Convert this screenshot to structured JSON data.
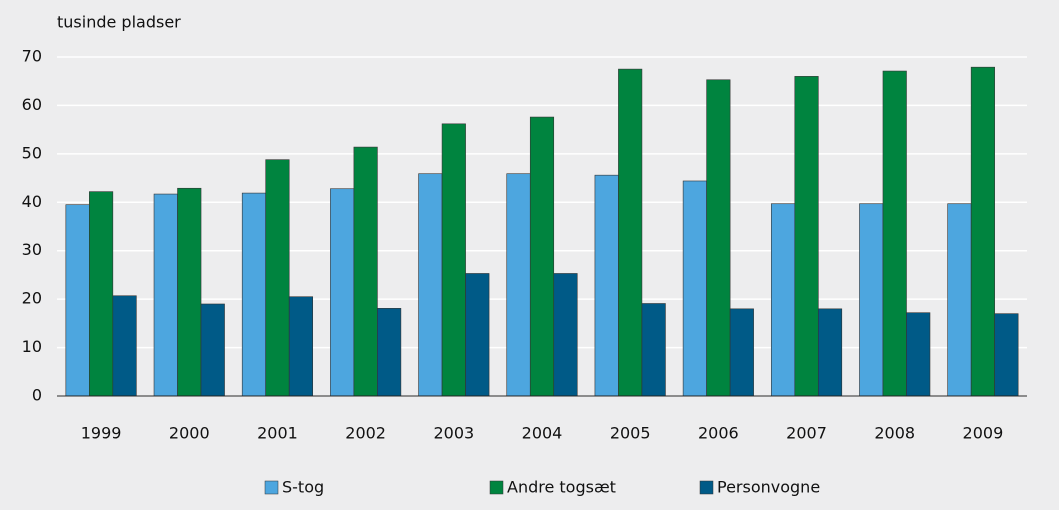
{
  "chart_data": {
    "type": "bar",
    "y_axis_label": "tusinde pladser",
    "categories": [
      "1999",
      "2000",
      "2001",
      "2002",
      "2003",
      "2004",
      "2005",
      "2006",
      "2007",
      "2008",
      "2009"
    ],
    "series": [
      {
        "name": "S-tog",
        "color": "#4da6df",
        "values": [
          39.5,
          41.7,
          41.9,
          42.8,
          45.9,
          45.9,
          45.6,
          44.4,
          39.7,
          39.7,
          39.7
        ]
      },
      {
        "name": "Andre togsæt",
        "color": "#00843f",
        "values": [
          42.2,
          42.9,
          48.8,
          51.4,
          56.2,
          57.6,
          67.5,
          65.3,
          66.0,
          67.1,
          67.9
        ]
      },
      {
        "name": "Personvogne",
        "color": "#005a87",
        "values": [
          20.7,
          19.0,
          20.5,
          18.1,
          25.3,
          25.3,
          19.1,
          18.0,
          18.0,
          17.2,
          17.0
        ]
      }
    ],
    "ylim": [
      0,
      70
    ],
    "yticks": [
      0,
      10,
      20,
      30,
      40,
      50,
      60,
      70
    ],
    "grid": true,
    "legend": "bottom"
  }
}
